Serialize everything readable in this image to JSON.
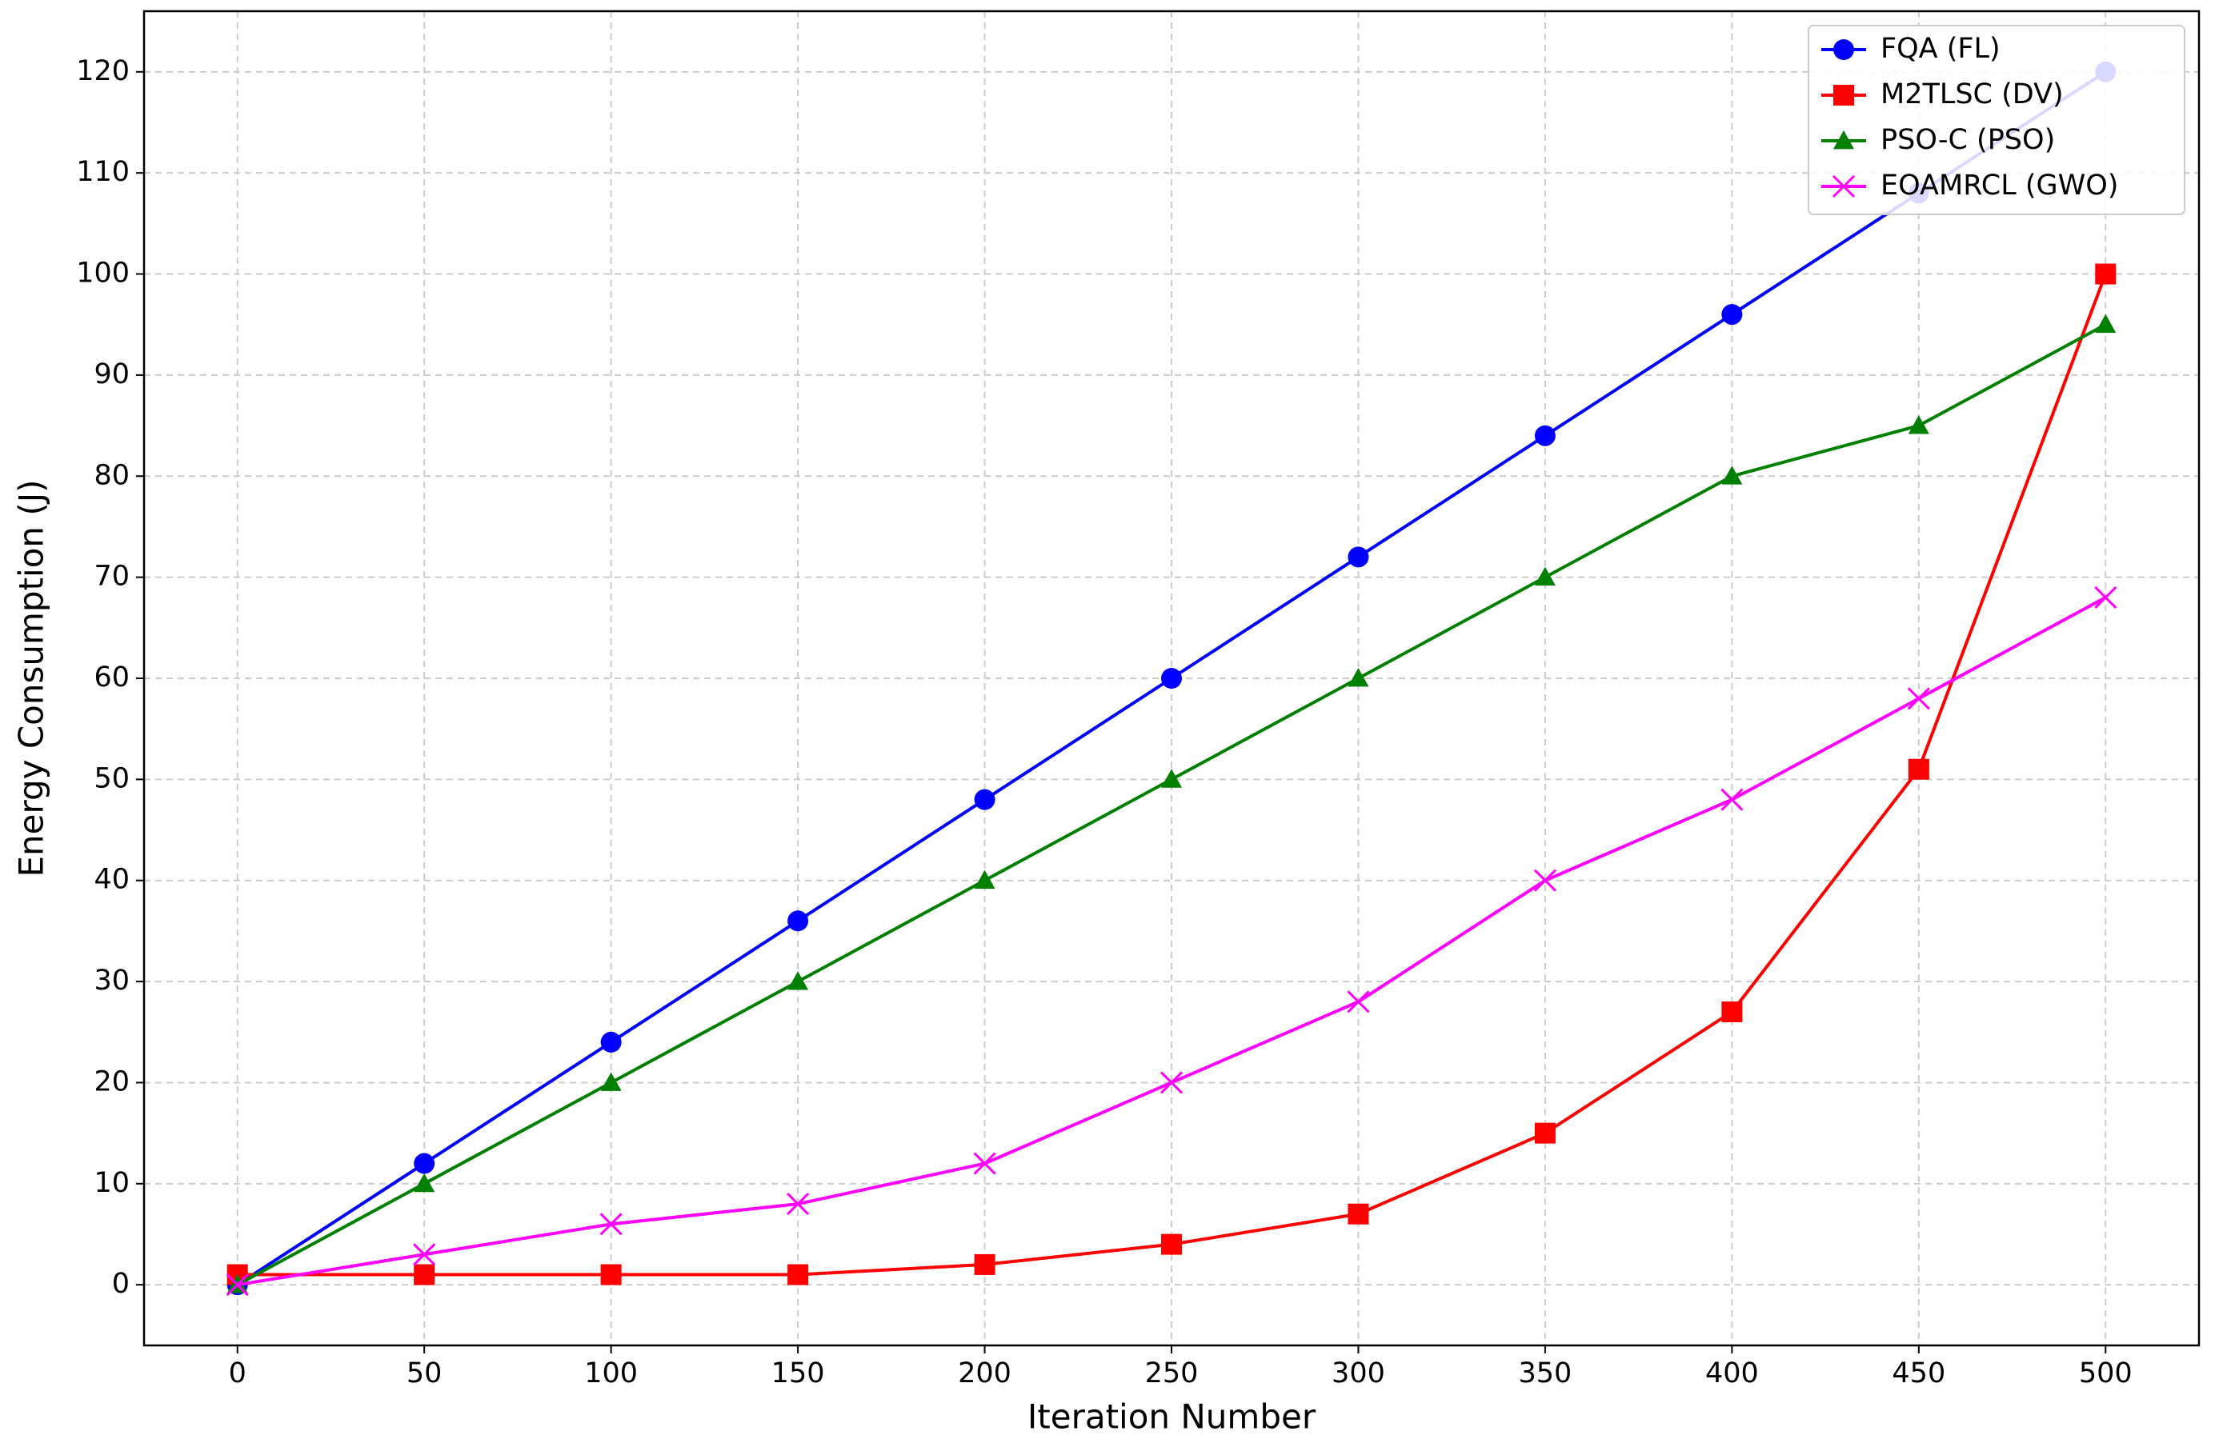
{
  "chart_data": {
    "type": "line",
    "x_label": "Iteration Number",
    "y_label": "Energy Consumption (J)",
    "x": [
      0,
      50,
      100,
      150,
      200,
      250,
      300,
      350,
      400,
      450,
      500
    ],
    "series": [
      {
        "name": "FQA (FL)",
        "color": "#0000ff",
        "marker": "circle",
        "values": [
          0,
          12,
          24,
          36,
          48,
          60,
          72,
          84,
          96,
          108,
          120
        ]
      },
      {
        "name": "M2TLSC (DV)",
        "color": "#ff0000",
        "marker": "square",
        "values": [
          1,
          1,
          1,
          1,
          2,
          4,
          7,
          15,
          27,
          51,
          100
        ]
      },
      {
        "name": "PSO-C (PSO)",
        "color": "#008000",
        "marker": "triangle",
        "values": [
          0,
          10,
          20,
          30,
          40,
          50,
          60,
          70,
          80,
          85,
          95
        ]
      },
      {
        "name": "EOAMRCL (GWO)",
        "color": "#ff00ff",
        "marker": "x",
        "values": [
          0,
          3,
          6,
          8,
          12,
          20,
          28,
          40,
          48,
          58,
          68
        ]
      }
    ],
    "xlim": [
      -25,
      525
    ],
    "xticks": [
      0,
      50,
      100,
      150,
      200,
      250,
      300,
      350,
      400,
      450,
      500
    ],
    "ylim": [
      -6,
      126
    ],
    "yticks": [
      0,
      10,
      20,
      30,
      40,
      50,
      60,
      70,
      80,
      90,
      100,
      110,
      120
    ],
    "grid": true,
    "legend": "upper-right"
  }
}
